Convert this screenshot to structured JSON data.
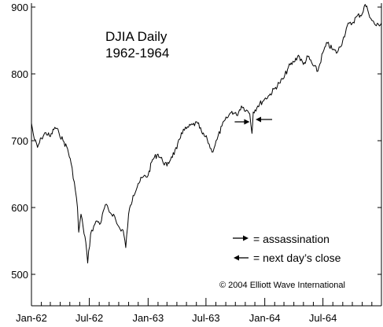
{
  "chart_data": {
    "type": "line",
    "title": "DJIA Daily",
    "subtitle": "1962-1964",
    "xlabel": "",
    "ylabel": "",
    "x_ticks": [
      "Jan-62",
      "Jul-62",
      "Jan-63",
      "Jul-63",
      "Jan-64",
      "Jul-64"
    ],
    "y_ticks": [
      500,
      600,
      700,
      800,
      900
    ],
    "ylim": [
      460,
      910
    ],
    "xlim": [
      "1962-01-01",
      "1964-12-31"
    ],
    "grid": false,
    "series": [
      {
        "points": [
          [
            "1962-01-01",
            726
          ],
          [
            "1962-01-10",
            702
          ],
          [
            "1962-01-20",
            690
          ],
          [
            "1962-02-01",
            704
          ],
          [
            "1962-02-15",
            712
          ],
          [
            "1962-03-01",
            706
          ],
          [
            "1962-03-15",
            720
          ],
          [
            "1962-03-28",
            712
          ],
          [
            "1962-04-10",
            700
          ],
          [
            "1962-04-24",
            688
          ],
          [
            "1962-05-05",
            666
          ],
          [
            "1962-05-15",
            638
          ],
          [
            "1962-05-25",
            600
          ],
          [
            "1962-05-29",
            563
          ],
          [
            "1962-06-05",
            590
          ],
          [
            "1962-06-12",
            570
          ],
          [
            "1962-06-20",
            548
          ],
          [
            "1962-06-26",
            517
          ],
          [
            "1962-07-05",
            560
          ],
          [
            "1962-07-15",
            572
          ],
          [
            "1962-07-25",
            580
          ],
          [
            "1962-08-05",
            576
          ],
          [
            "1962-08-20",
            604
          ],
          [
            "1962-09-05",
            592
          ],
          [
            "1962-09-15",
            590
          ],
          [
            "1962-09-25",
            576
          ],
          [
            "1962-10-05",
            568
          ],
          [
            "1962-10-15",
            566
          ],
          [
            "1962-10-23",
            540
          ],
          [
            "1962-11-01",
            590
          ],
          [
            "1962-11-15",
            618
          ],
          [
            "1962-12-01",
            636
          ],
          [
            "1962-12-15",
            645
          ],
          [
            "1963-01-01",
            648
          ],
          [
            "1963-01-15",
            672
          ],
          [
            "1963-02-01",
            680
          ],
          [
            "1963-02-15",
            670
          ],
          [
            "1963-03-01",
            662
          ],
          [
            "1963-03-15",
            676
          ],
          [
            "1963-04-01",
            688
          ],
          [
            "1963-04-15",
            712
          ],
          [
            "1963-05-01",
            718
          ],
          [
            "1963-05-20",
            724
          ],
          [
            "1963-06-05",
            726
          ],
          [
            "1963-06-20",
            710
          ],
          [
            "1963-07-05",
            702
          ],
          [
            "1963-07-20",
            683
          ],
          [
            "1963-08-05",
            702
          ],
          [
            "1963-08-20",
            722
          ],
          [
            "1963-09-05",
            734
          ],
          [
            "1963-09-20",
            744
          ],
          [
            "1963-10-05",
            738
          ],
          [
            "1963-10-20",
            752
          ],
          [
            "1963-11-05",
            746
          ],
          [
            "1963-11-15",
            740
          ],
          [
            "1963-11-22",
            711
          ],
          [
            "1963-11-26",
            743
          ],
          [
            "1963-12-10",
            752
          ],
          [
            "1963-12-31",
            762
          ],
          [
            "1964-01-15",
            768
          ],
          [
            "1964-02-01",
            778
          ],
          [
            "1964-02-15",
            786
          ],
          [
            "1964-03-01",
            794
          ],
          [
            "1964-03-15",
            810
          ],
          [
            "1964-04-01",
            818
          ],
          [
            "1964-04-15",
            828
          ],
          [
            "1964-05-01",
            814
          ],
          [
            "1964-05-15",
            826
          ],
          [
            "1964-06-01",
            812
          ],
          [
            "1964-06-15",
            804
          ],
          [
            "1964-07-01",
            832
          ],
          [
            "1964-07-15",
            846
          ],
          [
            "1964-08-01",
            836
          ],
          [
            "1964-08-15",
            832
          ],
          [
            "1964-09-01",
            850
          ],
          [
            "1964-09-15",
            872
          ],
          [
            "1964-10-01",
            876
          ],
          [
            "1964-10-15",
            886
          ],
          [
            "1964-11-01",
            890
          ],
          [
            "1964-11-10",
            904
          ],
          [
            "1964-11-18",
            896
          ],
          [
            "1964-12-01",
            880
          ],
          [
            "1964-12-15",
            872
          ],
          [
            "1964-12-31",
            876
          ]
        ]
      }
    ],
    "annotations": {
      "event_markers": [
        {
          "date": "1963-11-22",
          "value": 740,
          "direction": "right"
        },
        {
          "date": "1963-11-26",
          "value": 740,
          "direction": "left"
        }
      ],
      "legend": [
        {
          "symbol": "right-arrow",
          "text": "= assassination"
        },
        {
          "symbol": "left-arrow",
          "text": "= next day’s close"
        }
      ],
      "legend_placement": "bottom-right",
      "copyright": "© 2004 Elliott Wave International"
    }
  }
}
